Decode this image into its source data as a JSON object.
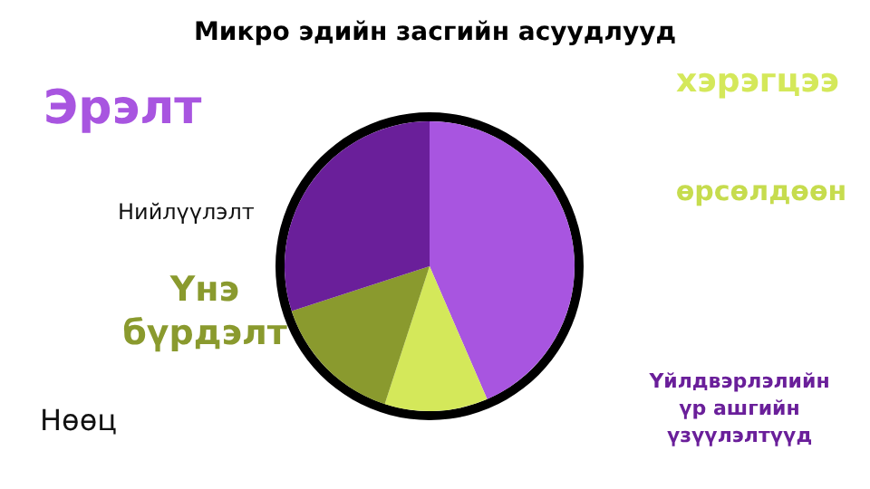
{
  "chart_data": {
    "type": "pie",
    "title": "Микро эдийн засгийн асуудлууд",
    "categories": [
      null,
      null,
      null,
      null
    ],
    "values": [
      43.5,
      11.5,
      15,
      30
    ],
    "colors": [
      "#a855e0",
      "#d4e85a",
      "#8a9a2e",
      "#6a1f9a"
    ],
    "annotations": [
      "Эрэлт",
      "хэрэгцээ",
      "өрсөлдөөн",
      "Нийлүүлэлт",
      "Үнэ\nбүрдэлт",
      "Нөөц",
      "Үйлдвэрлэлийн\nүр ашгийн\nүзүүлэлтүүд"
    ]
  }
}
